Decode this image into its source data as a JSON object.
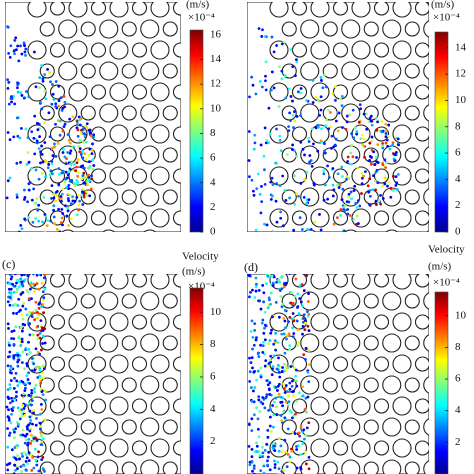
{
  "panels": [
    {
      "colorbar": {
        "title_lines": [
          "(m/s)"
        ],
        "exponent": "×10⁻⁴",
        "ylim": [
          0,
          16.4
        ],
        "ticks": [
          0,
          2,
          4,
          6,
          8,
          10,
          12,
          14,
          16
        ]
      }
    },
    {
      "colorbar": {
        "title_lines": [
          "(m/s)"
        ],
        "exponent": "×10⁻⁴",
        "ylim": [
          0,
          15.2
        ],
        "ticks": [
          0,
          2,
          4,
          6,
          8,
          10,
          12,
          14
        ]
      }
    },
    {
      "label": "(c)",
      "colorbar": {
        "title_lines": [
          "Velocity",
          "(m/s)"
        ],
        "exponent": "×10⁻⁴",
        "ylim": [
          0,
          11.5
        ],
        "ticks": [
          2,
          4,
          6,
          8,
          10
        ]
      }
    },
    {
      "label": "(d)",
      "colorbar": {
        "title_lines": [
          "Velocity",
          "(m/s)"
        ],
        "exponent": "×10⁻⁴",
        "ylim": [
          0,
          11.5
        ],
        "ticks": [
          2,
          4,
          6,
          8,
          10
        ]
      }
    }
  ]
}
